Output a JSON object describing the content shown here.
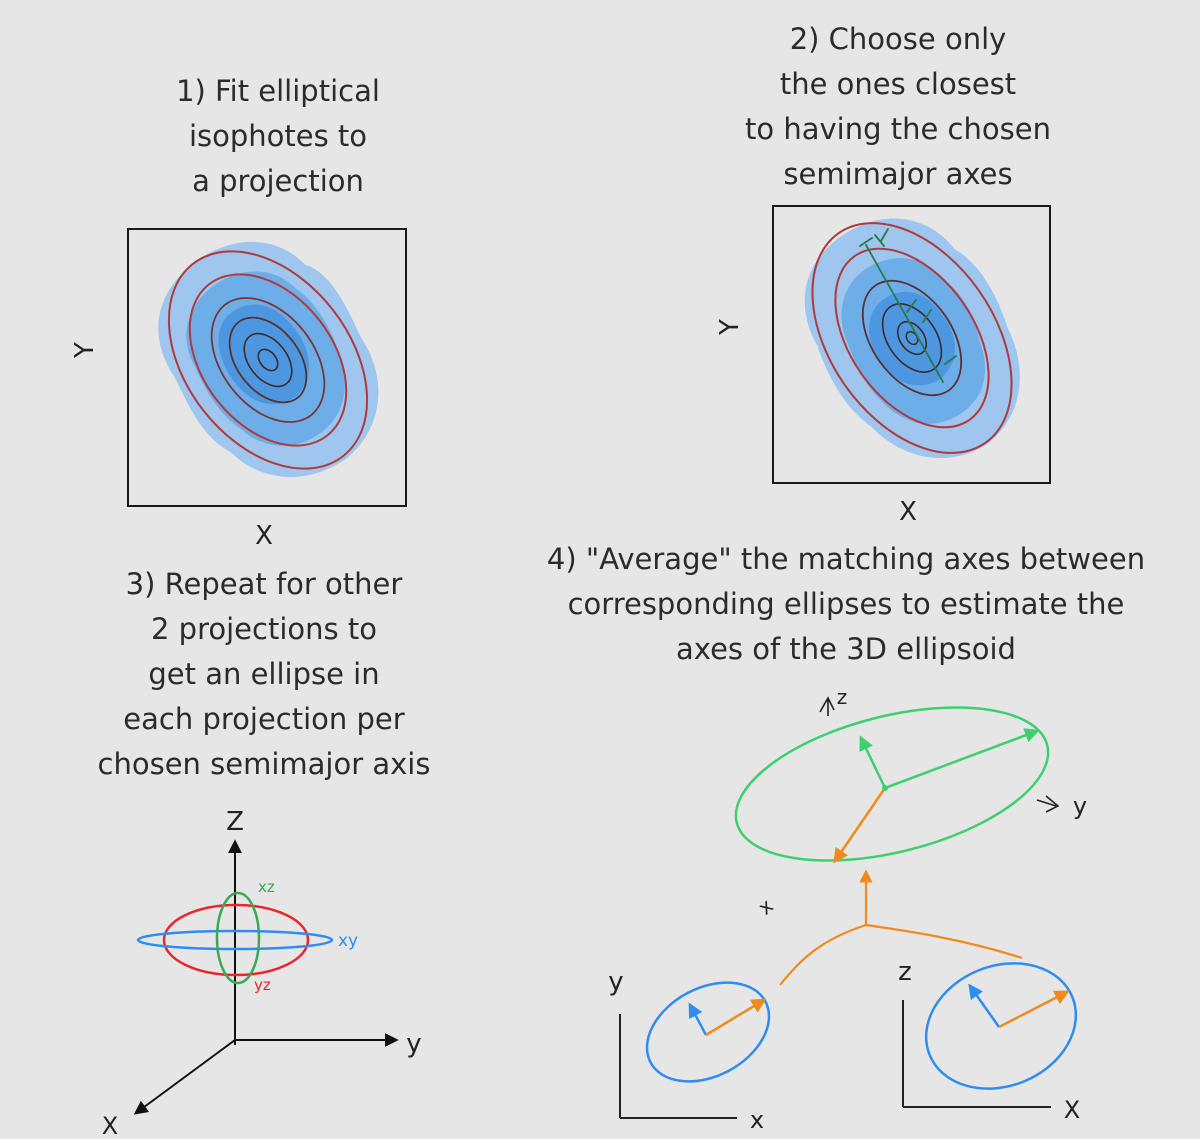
{
  "steps": [
    {
      "id": 1,
      "text": "1) Fit elliptical\nisophotes to\na projection"
    },
    {
      "id": 2,
      "text": "2) Choose only\nthe ones closest\nto having the chosen\nsemimajor axes"
    },
    {
      "id": 3,
      "text": "3) Repeat for other\n2 projections to\nget an ellipse in\neach projection per\nchosen semimajor axis"
    },
    {
      "id": 4,
      "text": "4) \"Average\" the matching axes between\ncorresponding ellipses to estimate the\naxes of the 3D ellipsoid"
    }
  ],
  "panel1": {
    "xlabel": "X",
    "ylabel": "Y"
  },
  "panel2": {
    "xlabel": "X",
    "ylabel": "Y"
  },
  "axes3d": {
    "z": "Z",
    "y": "y",
    "x": "X",
    "labels": {
      "xz": "xz",
      "xy": "xy",
      "yz": "yz"
    }
  },
  "step4": {
    "z": "z",
    "y": "y",
    "x": "x",
    "left_y": "y",
    "left_x": "x",
    "right_z": "z",
    "right_x": "X"
  },
  "colors": {
    "blue_light": "#9ec6ee",
    "blue_mid": "#6eaee8",
    "blue_dark": "#4d97e0",
    "isophote": "#b03a3a",
    "green": "#3ecf6f",
    "orange": "#f08a1c",
    "red": "#e8262b",
    "blue_line": "#2f8df0",
    "dark_green": "#2a7a45"
  }
}
